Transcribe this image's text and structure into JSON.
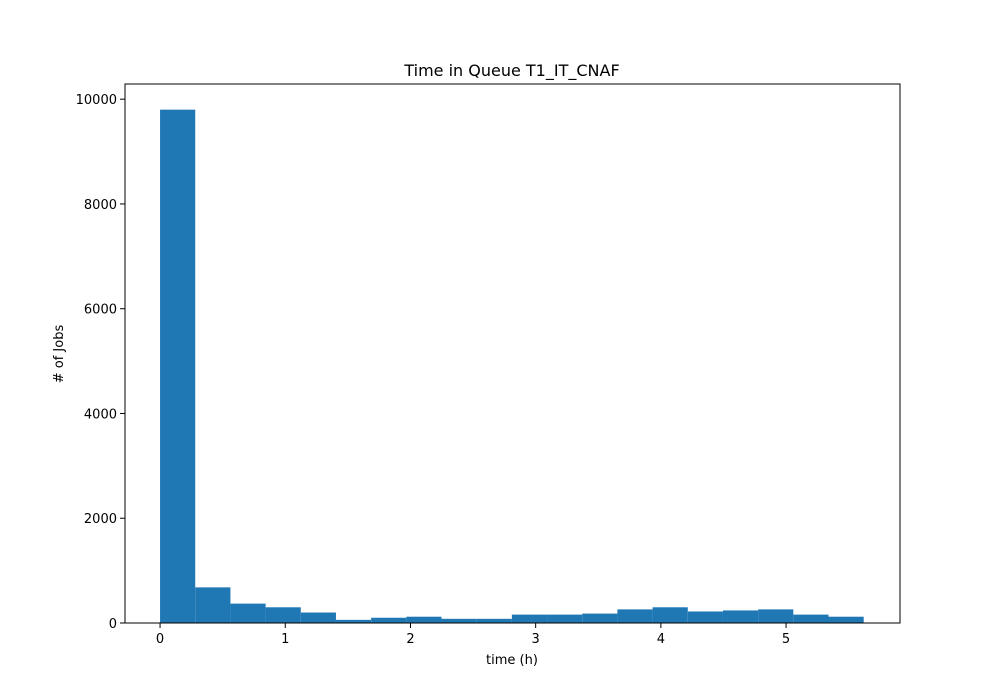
{
  "chart_data": {
    "type": "bar",
    "title": "Time in Queue T1_IT_CNAF",
    "xlabel": "time (h)",
    "ylabel": "# of Jobs",
    "xlim": [
      -0.28,
      5.91
    ],
    "ylim": [
      0,
      10290
    ],
    "xticks": [
      0,
      1,
      2,
      3,
      4,
      5
    ],
    "xtick_labels": [
      "0",
      "1",
      "2",
      "3",
      "4",
      "5"
    ],
    "yticks": [
      0,
      2000,
      4000,
      6000,
      8000,
      10000
    ],
    "ytick_labels": [
      "0",
      "2000",
      "4000",
      "6000",
      "8000",
      "10000"
    ],
    "bin_edges": [
      0.0,
      0.281,
      0.562,
      0.843,
      1.124,
      1.405,
      1.686,
      1.967,
      2.248,
      2.529,
      2.81,
      3.091,
      3.372,
      3.653,
      3.934,
      4.215,
      4.496,
      4.777,
      5.058,
      5.339,
      5.62
    ],
    "values": [
      9800,
      680,
      370,
      300,
      200,
      60,
      100,
      120,
      80,
      80,
      160,
      160,
      180,
      260,
      300,
      220,
      240,
      260,
      160,
      120
    ],
    "color": "#1f77b4",
    "grid": false,
    "legend": false
  }
}
